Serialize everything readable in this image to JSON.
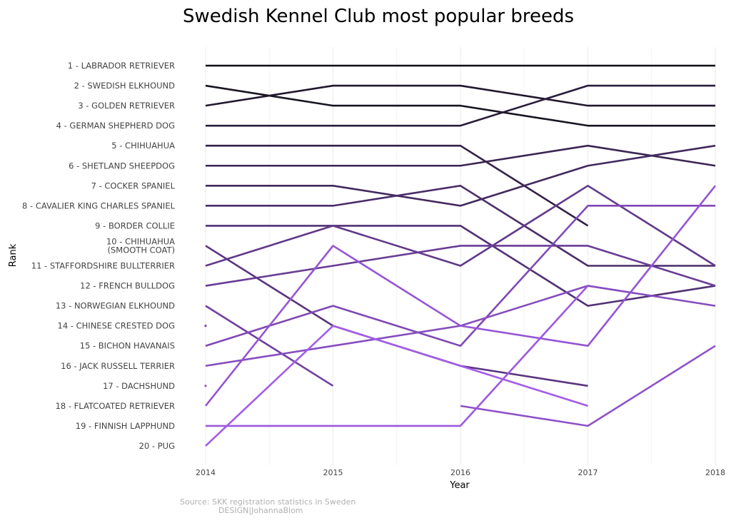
{
  "chart_data": {
    "type": "line",
    "title": "Swedish Kennel Club most popular breeds",
    "xlabel": "Year",
    "ylabel": "Rank",
    "x": [
      2014,
      2015,
      2016,
      2017,
      2018
    ],
    "y_tick_labels": [
      "1 - LABRADOR RETRIEVER",
      "2 - SWEDISH ELKHOUND",
      "3 - GOLDEN RETRIEVER",
      "4 - GERMAN SHEPHERD DOG",
      "5 - CHIHUAHUA",
      "6 - SHETLAND SHEEPDOG",
      "7 - COCKER SPANIEL",
      "8 - CAVALIER KING CHARLES SPANIEL",
      "9 - BORDER COLLIE",
      "10 - CHIHUAHUA\n(SMOOTH COAT)",
      "11 - STAFFORDSHIRE BULLTERRIER",
      "12 - FRENCH BULLDOG",
      "13 - NORWEGIAN ELKHOUND",
      "14 - CHINESE CRESTED DOG",
      "15 - BICHON HAVANAIS",
      "16 - JACK RUSSELL TERRIER",
      "17 - DACHSHUND",
      "18 - FLATCOATED RETRIEVER",
      "19 - FINNISH LAPPHUND",
      "20 - PUG"
    ],
    "ylim": [
      1,
      20
    ],
    "y_reversed": true,
    "grid": true,
    "series": [
      {
        "values": [
          1,
          1,
          1,
          1,
          1
        ]
      },
      {
        "values": [
          2,
          3,
          3,
          4,
          4
        ]
      },
      {
        "values": [
          3,
          2,
          2,
          3,
          3
        ]
      },
      {
        "values": [
          4,
          4,
          4,
          2,
          2
        ]
      },
      {
        "values": [
          5,
          5,
          5,
          9,
          null
        ]
      },
      {
        "values": [
          6,
          6,
          6,
          5,
          6
        ]
      },
      {
        "values": [
          7,
          7,
          8,
          6,
          5
        ]
      },
      {
        "values": [
          8,
          8,
          7,
          11,
          11
        ]
      },
      {
        "values": [
          9,
          9,
          9,
          13,
          12
        ]
      },
      {
        "values": [
          10,
          14,
          16,
          17,
          null
        ]
      },
      {
        "values": [
          11,
          9,
          11,
          7,
          11
        ]
      },
      {
        "values": [
          12,
          11,
          10,
          10,
          12
        ]
      },
      {
        "values": [
          13,
          17,
          null,
          null,
          null
        ]
      },
      {
        "values": [
          14,
          null,
          null,
          null,
          null
        ]
      },
      {
        "values": [
          15,
          13,
          15,
          8,
          8
        ]
      },
      {
        "values": [
          16,
          15,
          14,
          12,
          13
        ]
      },
      {
        "values": [
          17,
          null,
          18,
          19,
          15
        ]
      },
      {
        "values": [
          18,
          10,
          14,
          15,
          7
        ]
      },
      {
        "values": [
          19,
          19,
          19,
          12,
          null
        ]
      },
      {
        "values": [
          20,
          14,
          16,
          18,
          null
        ]
      }
    ]
  },
  "source": {
    "line1": "Source: SKK registration statistics in Sweden",
    "line2": "DESIGN|JohannaBlom"
  }
}
